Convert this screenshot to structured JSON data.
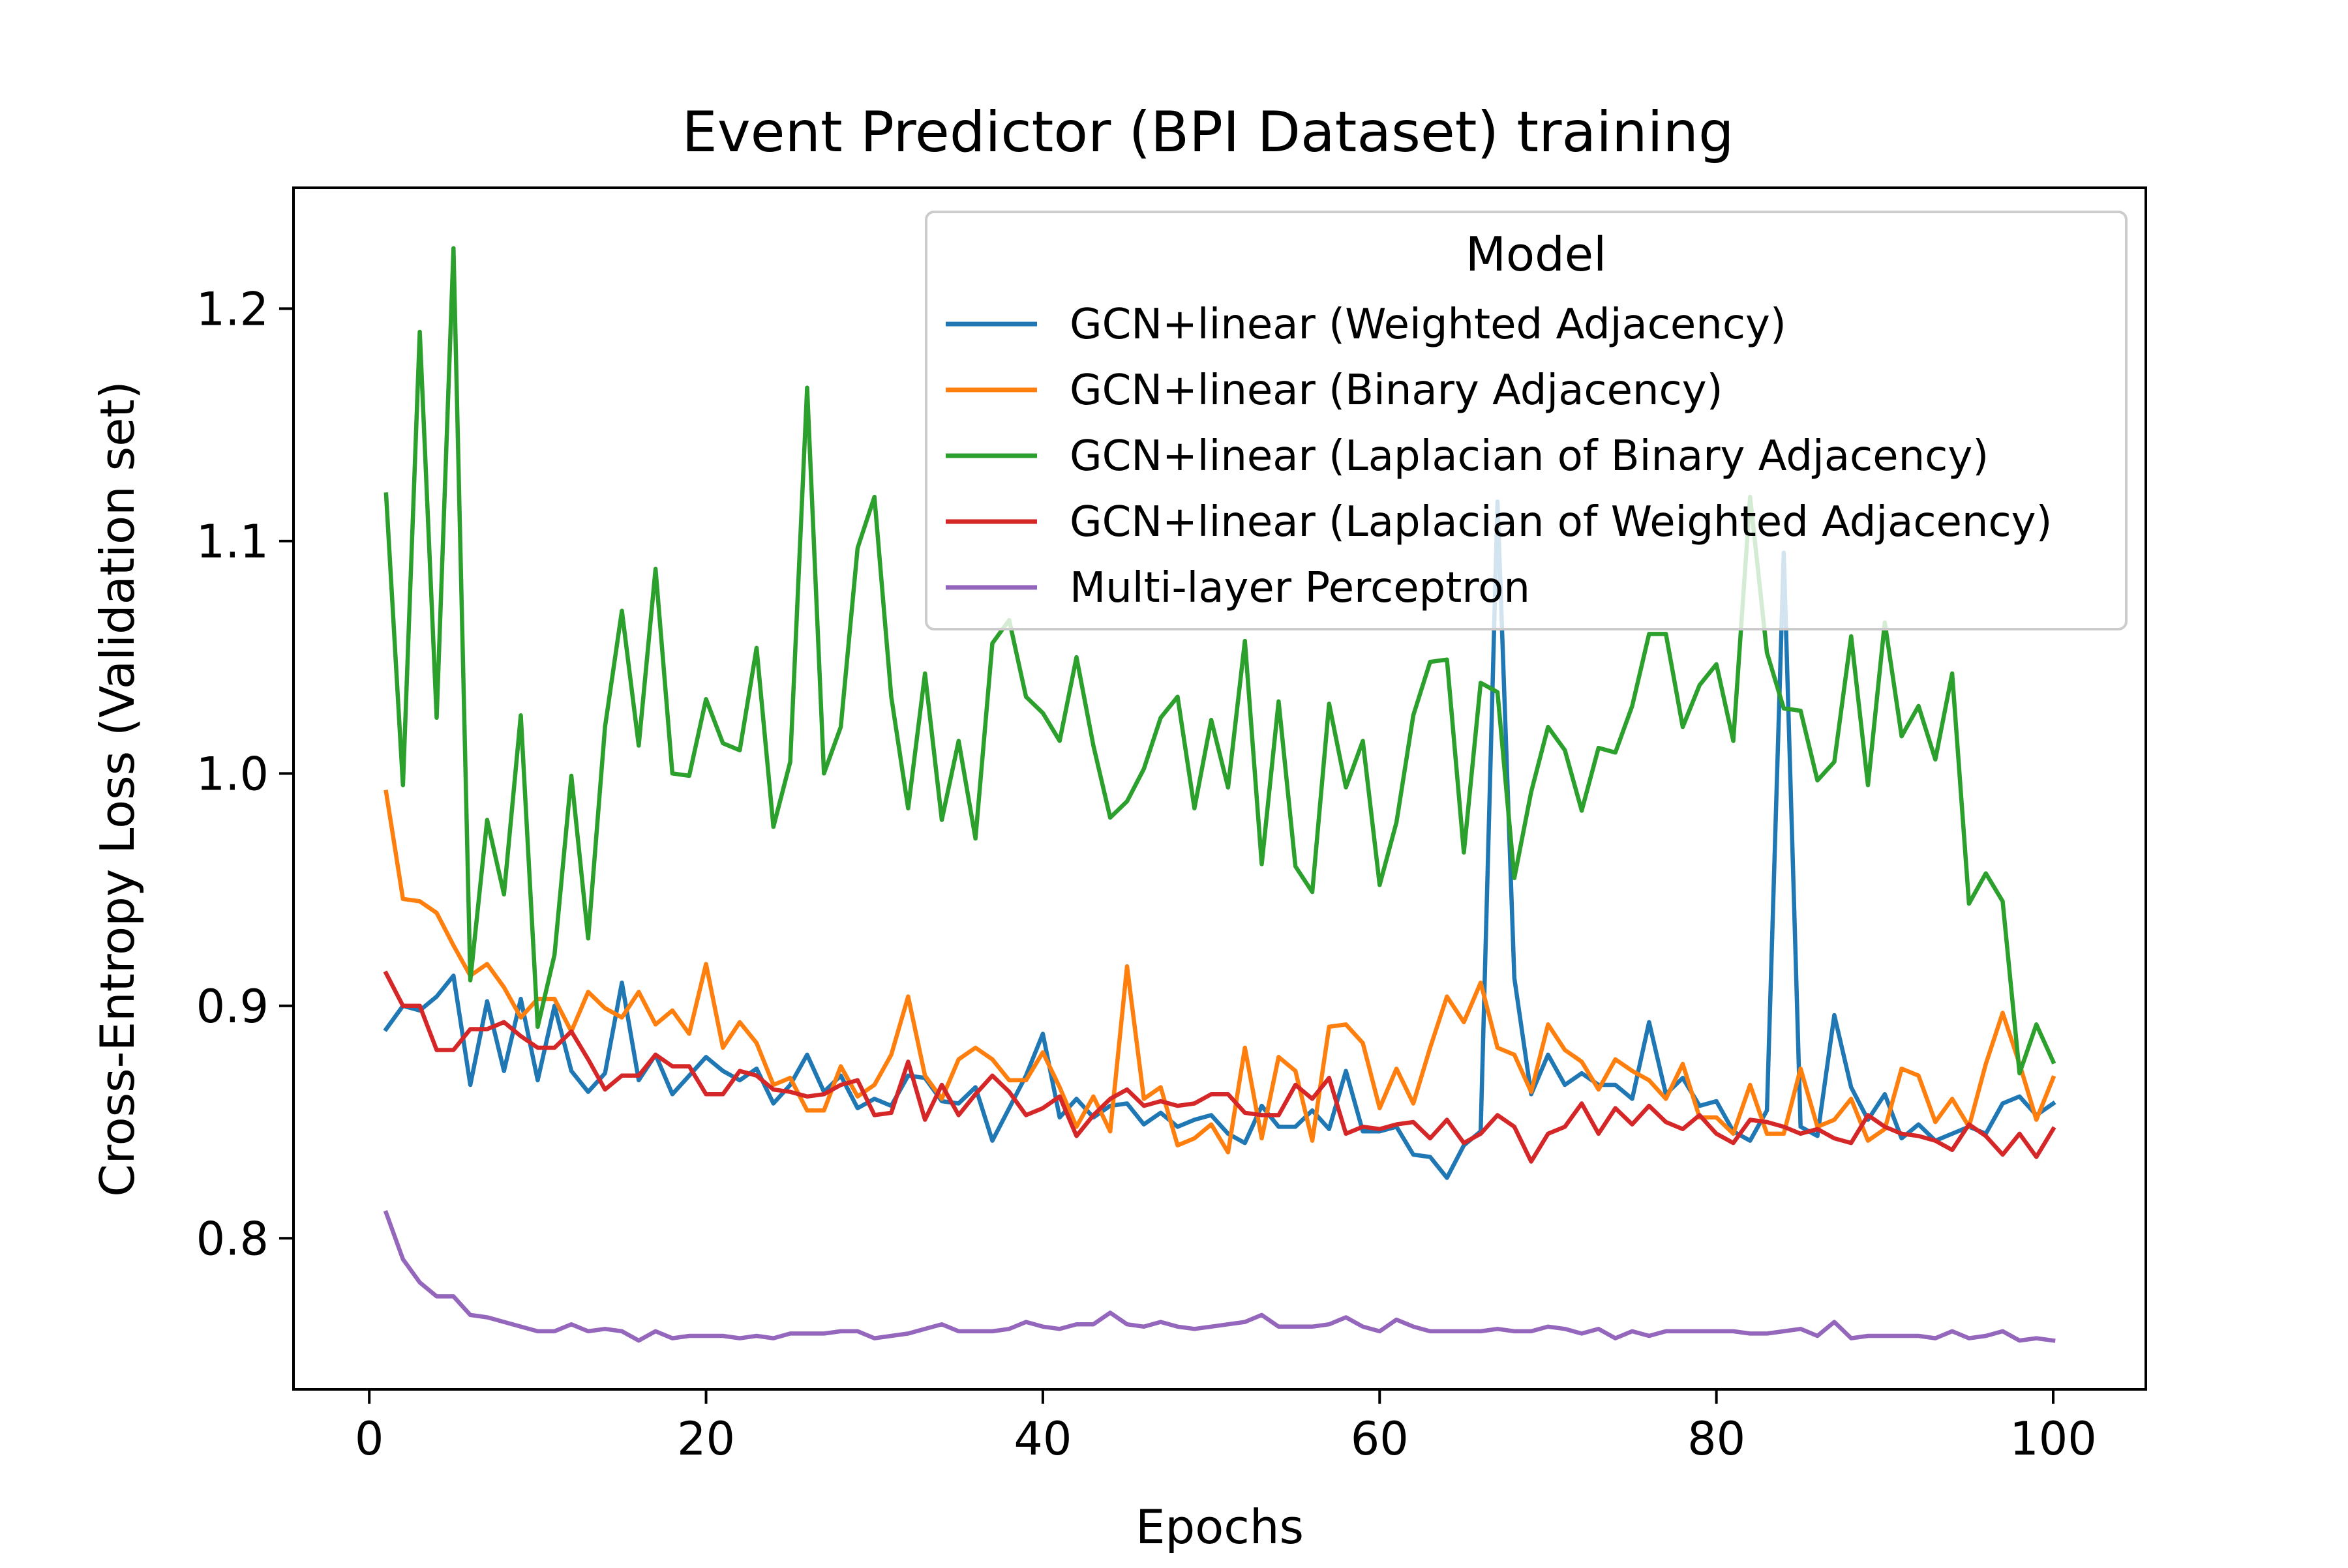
{
  "chart_data": {
    "type": "line",
    "title": "Event Predictor (BPI Dataset) training",
    "xlabel": "Epochs",
    "ylabel": "Cross-Entropy Loss (Validation set)",
    "xlim": [
      -4.5,
      105.5
    ],
    "ylim": [
      0.735,
      1.252
    ],
    "xticks": [
      0,
      20,
      40,
      60,
      80,
      100
    ],
    "xtick_labels": [
      "0",
      "20",
      "40",
      "60",
      "80",
      "100"
    ],
    "yticks": [
      0.8,
      0.9,
      1.0,
      1.1,
      1.2
    ],
    "ytick_labels": [
      "0.8",
      "0.9",
      "1.0",
      "1.1",
      "1.2"
    ],
    "grid": false,
    "legend": {
      "title": "Model",
      "placement": "top-right"
    },
    "x": [
      1,
      2,
      3,
      4,
      5,
      6,
      7,
      8,
      9,
      10,
      11,
      12,
      13,
      14,
      15,
      16,
      17,
      18,
      19,
      20,
      21,
      22,
      23,
      24,
      25,
      26,
      27,
      28,
      29,
      30,
      31,
      32,
      33,
      34,
      35,
      36,
      37,
      38,
      39,
      40,
      41,
      42,
      43,
      44,
      45,
      46,
      47,
      48,
      49,
      50,
      51,
      52,
      53,
      54,
      55,
      56,
      57,
      58,
      59,
      60,
      61,
      62,
      63,
      64,
      65,
      66,
      67,
      68,
      69,
      70,
      71,
      72,
      73,
      74,
      75,
      76,
      77,
      78,
      79,
      80,
      81,
      82,
      83,
      84,
      85,
      86,
      87,
      88,
      89,
      90,
      91,
      92,
      93,
      94,
      95,
      96,
      97,
      98,
      99,
      100
    ],
    "series": [
      {
        "name": "GCN+linear (Weighted Adjacency)",
        "color": "#1f77b4",
        "values": [
          0.89,
          0.9,
          0.898,
          0.904,
          0.913,
          0.866,
          0.902,
          0.872,
          0.903,
          0.868,
          0.9,
          0.872,
          0.863,
          0.871,
          0.91,
          0.868,
          0.879,
          0.862,
          0.87,
          0.878,
          0.872,
          0.868,
          0.873,
          0.858,
          0.866,
          0.879,
          0.863,
          0.87,
          0.856,
          0.86,
          0.857,
          0.87,
          0.869,
          0.859,
          0.858,
          0.865,
          0.842,
          0.856,
          0.87,
          0.888,
          0.852,
          0.86,
          0.852,
          0.857,
          0.858,
          0.849,
          0.854,
          0.848,
          0.851,
          0.853,
          0.845,
          0.841,
          0.857,
          0.848,
          0.848,
          0.855,
          0.847,
          0.872,
          0.846,
          0.846,
          0.848,
          0.836,
          0.835,
          0.826,
          0.84,
          0.846,
          1.117,
          0.912,
          0.862,
          0.879,
          0.866,
          0.871,
          0.866,
          0.866,
          0.86,
          0.893,
          0.862,
          0.869,
          0.857,
          0.859,
          0.846,
          0.842,
          0.855,
          1.095,
          0.848,
          0.844,
          0.896,
          0.865,
          0.851,
          0.862,
          0.843,
          0.849,
          0.842,
          0.845,
          0.848,
          0.845,
          0.858,
          0.861,
          0.853,
          0.858
        ]
      },
      {
        "name": "GCN+linear (Binary Adjacency)",
        "color": "#ff7f0e",
        "values": [
          0.992,
          0.946,
          0.945,
          0.94,
          0.926,
          0.913,
          0.918,
          0.908,
          0.895,
          0.903,
          0.903,
          0.889,
          0.906,
          0.899,
          0.895,
          0.906,
          0.892,
          0.898,
          0.888,
          0.918,
          0.882,
          0.893,
          0.884,
          0.866,
          0.869,
          0.855,
          0.855,
          0.874,
          0.861,
          0.866,
          0.879,
          0.904,
          0.87,
          0.86,
          0.877,
          0.882,
          0.877,
          0.868,
          0.868,
          0.88,
          0.865,
          0.848,
          0.861,
          0.846,
          0.917,
          0.86,
          0.865,
          0.84,
          0.843,
          0.849,
          0.837,
          0.882,
          0.843,
          0.878,
          0.872,
          0.842,
          0.891,
          0.892,
          0.884,
          0.856,
          0.873,
          0.858,
          0.882,
          0.904,
          0.893,
          0.91,
          0.882,
          0.879,
          0.863,
          0.892,
          0.881,
          0.876,
          0.864,
          0.877,
          0.872,
          0.868,
          0.86,
          0.875,
          0.852,
          0.852,
          0.845,
          0.866,
          0.845,
          0.845,
          0.873,
          0.848,
          0.851,
          0.86,
          0.842,
          0.847,
          0.873,
          0.87,
          0.85,
          0.86,
          0.848,
          0.875,
          0.897,
          0.875,
          0.851,
          0.869
        ]
      },
      {
        "name": "GCN+linear (Laplacian of Binary Adjacency)",
        "color": "#2ca02c",
        "values": [
          1.12,
          0.995,
          1.19,
          1.024,
          1.226,
          0.911,
          0.98,
          0.948,
          1.025,
          0.891,
          0.922,
          0.999,
          0.929,
          1.02,
          1.07,
          1.012,
          1.088,
          1.0,
          0.999,
          1.032,
          1.013,
          1.01,
          1.054,
          0.977,
          1.005,
          1.166,
          1.0,
          1.02,
          1.097,
          1.119,
          1.033,
          0.985,
          1.043,
          0.98,
          1.014,
          0.972,
          1.056,
          1.066,
          1.033,
          1.026,
          1.014,
          1.05,
          1.012,
          0.981,
          0.988,
          1.002,
          1.024,
          1.033,
          0.985,
          1.023,
          0.994,
          1.057,
          0.961,
          1.031,
          0.96,
          0.949,
          1.03,
          0.994,
          1.014,
          0.952,
          0.979,
          1.025,
          1.048,
          1.049,
          0.966,
          1.039,
          1.035,
          0.955,
          0.992,
          1.02,
          1.01,
          0.984,
          1.011,
          1.009,
          1.029,
          1.06,
          1.06,
          1.02,
          1.038,
          1.047,
          1.014,
          1.119,
          1.052,
          1.028,
          1.027,
          0.997,
          1.005,
          1.059,
          0.995,
          1.065,
          1.016,
          1.029,
          1.006,
          1.043,
          0.944,
          0.957,
          0.945,
          0.871,
          0.892,
          0.876
        ]
      },
      {
        "name": "GCN+linear (Laplacian of Weighted Adjacency)",
        "color": "#d62728",
        "values": [
          0.914,
          0.9,
          0.9,
          0.881,
          0.881,
          0.89,
          0.89,
          0.893,
          0.887,
          0.882,
          0.882,
          0.889,
          0.877,
          0.864,
          0.87,
          0.87,
          0.879,
          0.874,
          0.874,
          0.862,
          0.862,
          0.872,
          0.87,
          0.864,
          0.863,
          0.861,
          0.862,
          0.866,
          0.868,
          0.853,
          0.854,
          0.876,
          0.851,
          0.866,
          0.853,
          0.862,
          0.87,
          0.863,
          0.853,
          0.856,
          0.861,
          0.844,
          0.853,
          0.86,
          0.864,
          0.857,
          0.859,
          0.857,
          0.858,
          0.862,
          0.862,
          0.854,
          0.853,
          0.853,
          0.866,
          0.86,
          0.869,
          0.845,
          0.848,
          0.847,
          0.849,
          0.85,
          0.843,
          0.851,
          0.841,
          0.845,
          0.853,
          0.848,
          0.833,
          0.845,
          0.848,
          0.858,
          0.845,
          0.856,
          0.849,
          0.857,
          0.85,
          0.847,
          0.853,
          0.845,
          0.841,
          0.851,
          0.85,
          0.848,
          0.845,
          0.847,
          0.843,
          0.841,
          0.853,
          0.848,
          0.845,
          0.844,
          0.842,
          0.838,
          0.849,
          0.844,
          0.836,
          0.845,
          0.835,
          0.847
        ]
      },
      {
        "name": "Multi-layer Perceptron",
        "color": "#9467bd",
        "values": [
          0.811,
          0.791,
          0.781,
          0.775,
          0.775,
          0.767,
          0.766,
          0.764,
          0.762,
          0.76,
          0.76,
          0.763,
          0.76,
          0.761,
          0.76,
          0.756,
          0.76,
          0.757,
          0.758,
          0.758,
          0.758,
          0.757,
          0.758,
          0.757,
          0.759,
          0.759,
          0.759,
          0.76,
          0.76,
          0.757,
          0.758,
          0.759,
          0.761,
          0.763,
          0.76,
          0.76,
          0.76,
          0.761,
          0.764,
          0.762,
          0.761,
          0.763,
          0.763,
          0.768,
          0.763,
          0.762,
          0.764,
          0.762,
          0.761,
          0.762,
          0.763,
          0.764,
          0.767,
          0.762,
          0.762,
          0.762,
          0.763,
          0.766,
          0.762,
          0.76,
          0.765,
          0.762,
          0.76,
          0.76,
          0.76,
          0.76,
          0.761,
          0.76,
          0.76,
          0.762,
          0.761,
          0.759,
          0.761,
          0.757,
          0.76,
          0.758,
          0.76,
          0.76,
          0.76,
          0.76,
          0.76,
          0.759,
          0.759,
          0.76,
          0.761,
          0.758,
          0.764,
          0.757,
          0.758,
          0.758,
          0.758,
          0.758,
          0.757,
          0.76,
          0.757,
          0.758,
          0.76,
          0.756,
          0.757,
          0.756
        ]
      }
    ]
  }
}
